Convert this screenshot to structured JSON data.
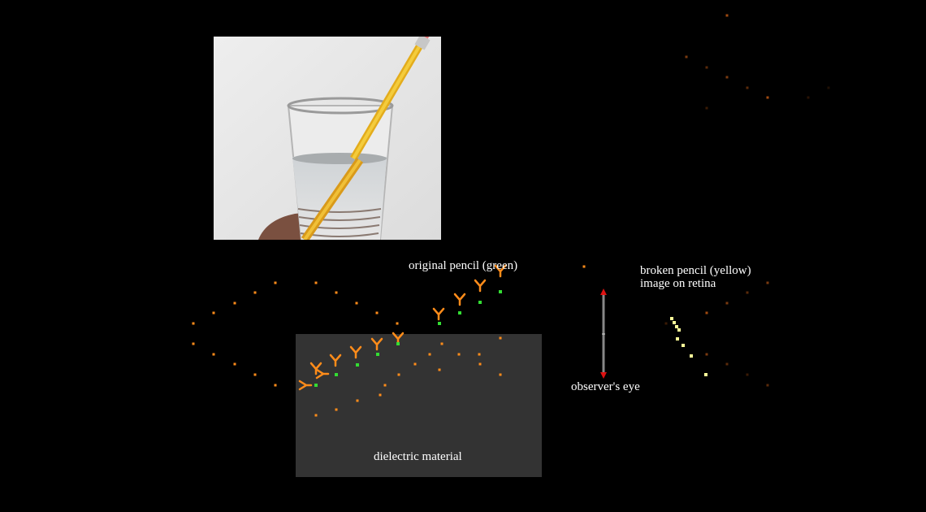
{
  "labels": {
    "original_pencil": "original pencil (green)",
    "broken_pencil_line1": "broken pencil (yellow)",
    "broken_pencil_line2": "image on retina",
    "observer": "observer's eye",
    "medium": "dielectric material"
  },
  "colors": {
    "background": "#000000",
    "medium": "#333333",
    "ray": "#ff8c1a",
    "pencil_point": "#33dd33",
    "image_point": "#ffff99",
    "eye_axis": "#888888",
    "eye_arrow": "#dd1111",
    "pencil_photo": "#f2c12e"
  },
  "photo": {
    "description_icon": "pencil-in-glass-photo"
  }
}
